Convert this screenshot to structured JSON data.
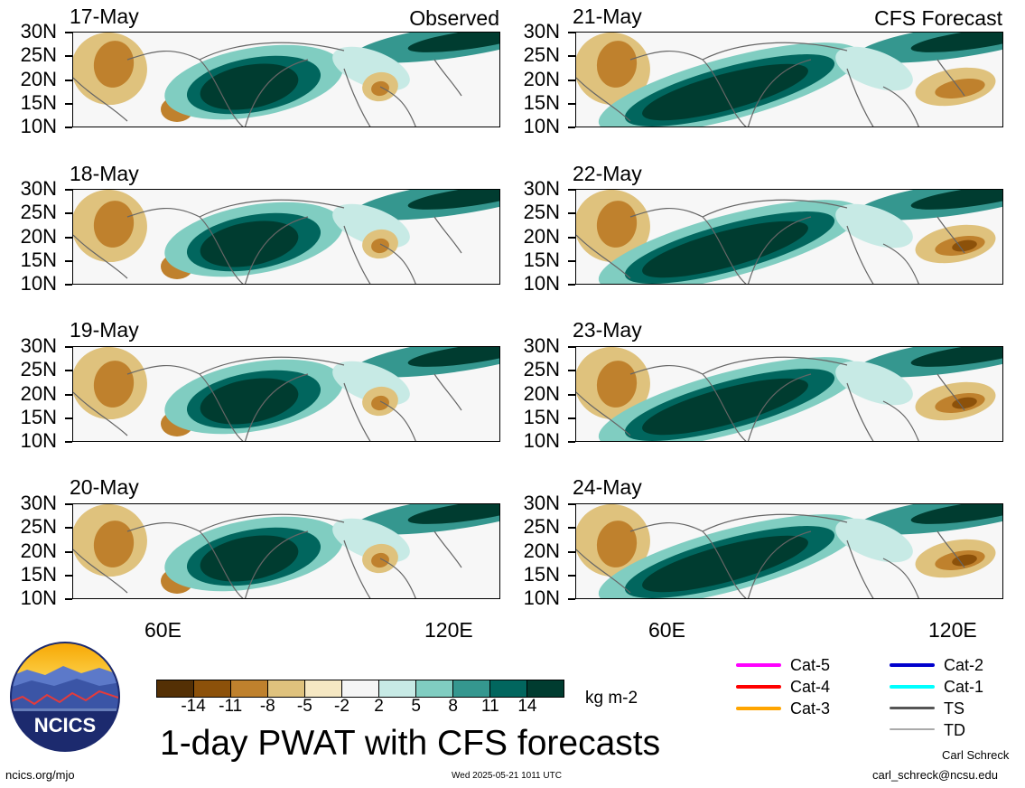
{
  "panels": {
    "left": [
      {
        "date": "17-May",
        "corner": "Observed"
      },
      {
        "date": "18-May",
        "corner": ""
      },
      {
        "date": "19-May",
        "corner": ""
      },
      {
        "date": "20-May",
        "corner": ""
      }
    ],
    "right": [
      {
        "date": "21-May",
        "corner": "CFS Forecast"
      },
      {
        "date": "22-May",
        "corner": ""
      },
      {
        "date": "23-May",
        "corner": ""
      },
      {
        "date": "24-May",
        "corner": ""
      }
    ]
  },
  "latitude_labels": [
    "30N",
    "25N",
    "20N",
    "15N",
    "10N"
  ],
  "longitude_labels": [
    "60E",
    "120E"
  ],
  "colorbar": {
    "colors": [
      "#543005",
      "#8c510a",
      "#bf812d",
      "#dfc27d",
      "#f6e8c3",
      "#f5f5f5",
      "#c7eae5",
      "#80cdc1",
      "#35978f",
      "#01665e",
      "#003c30"
    ],
    "tick_labels": [
      "-14",
      "-11",
      "-8",
      "-5",
      "-2",
      "2",
      "5",
      "8",
      "11",
      "14"
    ],
    "units": "kg m-2"
  },
  "title": "1-day PWAT with CFS forecasts",
  "footer": {
    "url": "ncics.org/mjo",
    "timestamp": "Wed 2025-05-21 1011 UTC",
    "author": "Carl Schreck",
    "email": "carl_schreck@ncsu.edu"
  },
  "logo_text": "NCICS",
  "legend": [
    {
      "label": "Cat-5",
      "color": "#ff00ff"
    },
    {
      "label": "Cat-4",
      "color": "#ff0000"
    },
    {
      "label": "Cat-3",
      "color": "#ffa500"
    },
    {
      "label": "Cat-2",
      "color": "#0000cd"
    },
    {
      "label": "Cat-1",
      "color": "#00ffff"
    },
    {
      "label": "TS",
      "color": "#555555"
    },
    {
      "label": "TD",
      "color": "#aaaaaa"
    }
  ]
}
